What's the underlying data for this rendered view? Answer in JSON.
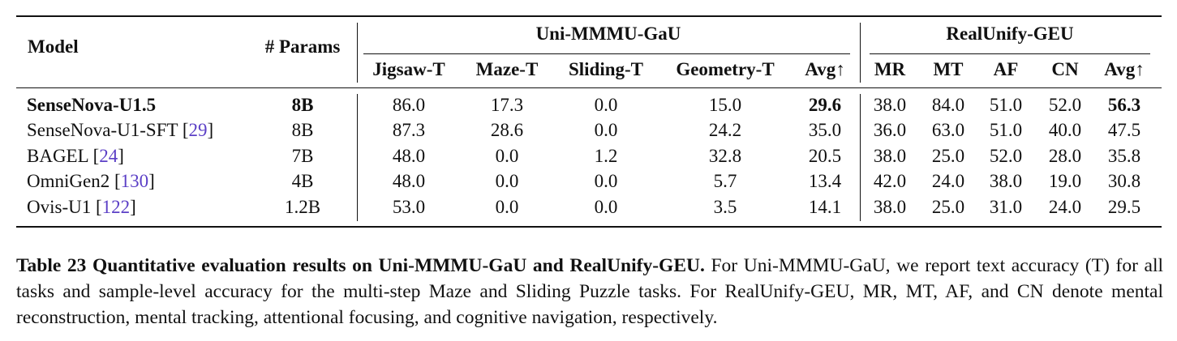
{
  "table": {
    "header": {
      "model": "Model",
      "params": "# Params",
      "group1": "Uni-MMMU-GaU",
      "group2": "RealUnify-GEU",
      "group1_cols": [
        "Jigsaw-T",
        "Maze-T",
        "Sliding-T",
        "Geometry-T",
        "Avg↑"
      ],
      "group2_cols": [
        "MR",
        "MT",
        "AF",
        "CN",
        "Avg↑"
      ]
    },
    "rows": [
      {
        "model": "SenseNova-U1.5",
        "ref": "",
        "params": "8B",
        "g1": [
          "86.0",
          "17.3",
          "0.0",
          "15.0",
          "29.6"
        ],
        "g2": [
          "38.0",
          "84.0",
          "51.0",
          "52.0",
          "56.3"
        ],
        "bold_model": true
      },
      {
        "model": "SenseNova-U1-SFT",
        "ref": "29",
        "params": "8B",
        "g1": [
          "87.3",
          "28.6",
          "0.0",
          "24.2",
          "35.0"
        ],
        "g2": [
          "36.0",
          "63.0",
          "51.0",
          "40.0",
          "47.5"
        ],
        "bold_model": false
      },
      {
        "model": "BAGEL",
        "ref": "24",
        "params": "7B",
        "g1": [
          "48.0",
          "0.0",
          "1.2",
          "32.8",
          "20.5"
        ],
        "g2": [
          "38.0",
          "25.0",
          "52.0",
          "28.0",
          "35.8"
        ],
        "bold_model": false
      },
      {
        "model": "OmniGen2",
        "ref": "130",
        "params": "4B",
        "g1": [
          "48.0",
          "0.0",
          "0.0",
          "5.7",
          "13.4"
        ],
        "g2": [
          "42.0",
          "24.0",
          "38.0",
          "19.0",
          "30.8"
        ],
        "bold_model": false
      },
      {
        "model": "Ovis-U1",
        "ref": "122",
        "params": "1.2B",
        "g1": [
          "53.0",
          "0.0",
          "0.0",
          "3.5",
          "14.1"
        ],
        "g2": [
          "38.0",
          "25.0",
          "31.0",
          "24.0",
          "29.5"
        ],
        "bold_model": false
      }
    ]
  },
  "caption": {
    "head": "Table 23  Quantitative evaluation results on Uni-MMMU-GaU and RealUnify-GEU.",
    "body": " For Uni-MMMU-GaU, we report text accuracy (T) for all tasks and sample-level accuracy for the multi-step Maze and Sliding Puzzle tasks. For RealUnify-GEU, MR, MT, AF, and CN denote mental reconstruction, mental tracking, attentional focusing, and cognitive navigation, respectively."
  }
}
